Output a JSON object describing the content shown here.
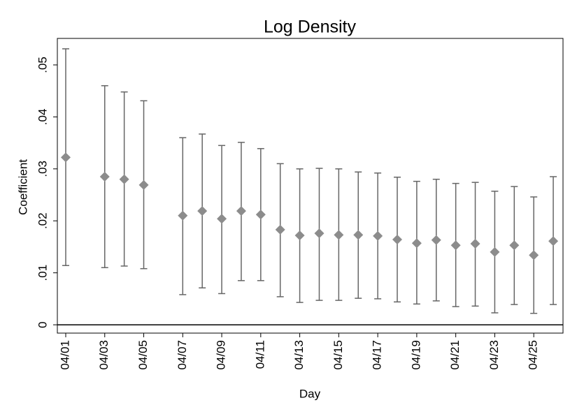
{
  "chart_data": {
    "type": "errorbar",
    "title": "Log Density",
    "x_label": "Day",
    "y_label": "Coefficient",
    "x": [
      1,
      3,
      4,
      5,
      7,
      8,
      9,
      10,
      11,
      12,
      13,
      14,
      15,
      16,
      17,
      18,
      19,
      20,
      21,
      22,
      23,
      24,
      25,
      26
    ],
    "series": [
      {
        "color": "#8c8c8c",
        "bar_color": "#666666",
        "values": [
          0.0322,
          0.0285,
          0.028,
          0.0269,
          0.021,
          0.0219,
          0.0204,
          0.0219,
          0.0212,
          0.0183,
          0.0172,
          0.0176,
          0.0173,
          0.0173,
          0.0171,
          0.0164,
          0.0157,
          0.0163,
          0.0153,
          0.0156,
          0.014,
          0.0153,
          0.0134,
          0.0161
        ],
        "lower": [
          0.0114,
          0.011,
          0.0113,
          0.0108,
          0.0058,
          0.0071,
          0.006,
          0.0085,
          0.0085,
          0.0054,
          0.0043,
          0.0047,
          0.0047,
          0.0051,
          0.005,
          0.0044,
          0.004,
          0.0046,
          0.0035,
          0.0036,
          0.0023,
          0.0039,
          0.0022,
          0.0039
        ],
        "upper": [
          0.0531,
          0.046,
          0.0448,
          0.0431,
          0.036,
          0.0367,
          0.0345,
          0.0351,
          0.0339,
          0.031,
          0.03,
          0.0301,
          0.03,
          0.0294,
          0.0292,
          0.0284,
          0.0276,
          0.028,
          0.0272,
          0.0274,
          0.0257,
          0.0266,
          0.0246,
          0.0285
        ]
      }
    ],
    "xlim": [
      0.57,
      26.5
    ],
    "xticks": [
      {
        "value": 1,
        "label": "04/01"
      },
      {
        "value": 3,
        "label": "04/03"
      },
      {
        "value": 5,
        "label": "04/05"
      },
      {
        "value": 7,
        "label": "04/07"
      },
      {
        "value": 9,
        "label": "04/09"
      },
      {
        "value": 11,
        "label": "04/11"
      },
      {
        "value": 13,
        "label": "04/13"
      },
      {
        "value": 15,
        "label": "04/15"
      },
      {
        "value": 17,
        "label": "04/17"
      },
      {
        "value": 19,
        "label": "04/19"
      },
      {
        "value": 21,
        "label": "04/21"
      },
      {
        "value": 23,
        "label": "04/23"
      },
      {
        "value": 25,
        "label": "04/25"
      }
    ],
    "ylim": [
      -0.0016,
      0.0551
    ],
    "yticks": [
      0,
      {
        "value": 0.01,
        "label": ".01"
      },
      {
        "value": 0.02,
        "label": ".02"
      },
      {
        "value": 0.03,
        "label": ".03"
      },
      {
        "value": 0.04,
        "label": ".04"
      },
      {
        "value": 0.05,
        "label": ".05"
      }
    ],
    "zero_line": true
  }
}
